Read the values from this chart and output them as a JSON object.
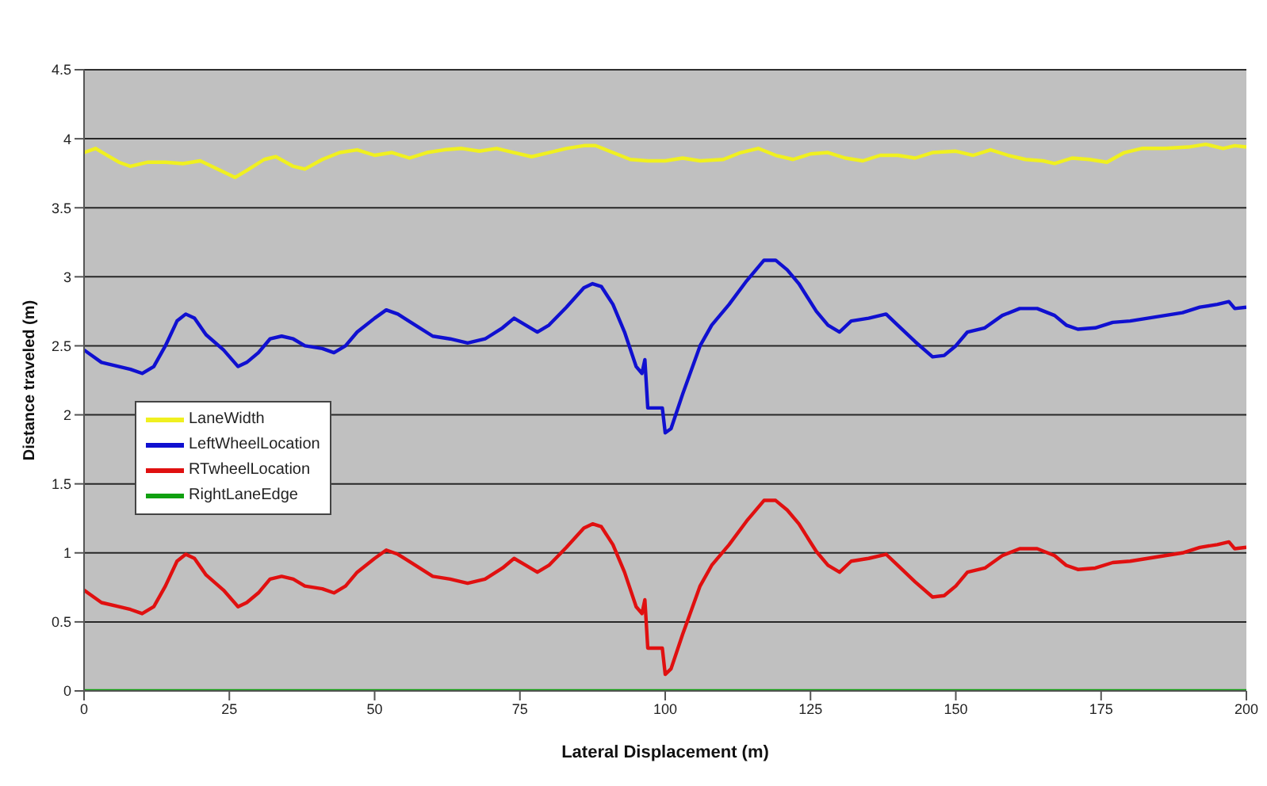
{
  "chart_data": {
    "type": "line",
    "xlabel": "Lateral Displacement (m)",
    "ylabel": "Distance traveled (m)",
    "xlim": [
      0,
      200
    ],
    "xticks": [
      0,
      25,
      50,
      75,
      100,
      125,
      150,
      175,
      200
    ],
    "ylim": [
      0,
      4.5
    ],
    "yticks": [
      0,
      0.5,
      1,
      1.5,
      2,
      2.5,
      3,
      3.5,
      4,
      4.5
    ],
    "grid": "y",
    "legend": "left",
    "marker": "none",
    "line_style": "solid",
    "series": [
      {
        "name": "LaneWidth",
        "color": "#f0f020",
        "x": [
          0,
          2,
          4,
          6,
          8,
          11,
          14,
          17,
          20,
          23,
          26,
          28,
          31,
          33,
          36,
          38,
          41,
          44,
          47,
          50,
          53,
          56,
          59,
          62,
          65,
          68,
          71,
          74,
          77,
          80,
          83,
          86,
          88,
          91,
          94,
          97,
          100,
          103,
          106,
          110,
          113,
          116,
          119,
          122,
          125,
          128,
          131,
          134,
          137,
          140,
          143,
          146,
          150,
          153,
          156,
          159,
          162,
          165,
          167,
          170,
          173,
          176,
          179,
          182,
          186,
          190,
          193,
          196,
          198,
          200
        ],
        "values": [
          3.9,
          3.93,
          3.88,
          3.83,
          3.8,
          3.83,
          3.83,
          3.82,
          3.84,
          3.78,
          3.72,
          3.77,
          3.85,
          3.87,
          3.8,
          3.78,
          3.85,
          3.9,
          3.92,
          3.88,
          3.9,
          3.86,
          3.9,
          3.92,
          3.93,
          3.91,
          3.93,
          3.9,
          3.87,
          3.9,
          3.93,
          3.95,
          3.95,
          3.9,
          3.85,
          3.84,
          3.84,
          3.86,
          3.84,
          3.85,
          3.9,
          3.93,
          3.88,
          3.85,
          3.89,
          3.9,
          3.86,
          3.84,
          3.88,
          3.88,
          3.86,
          3.9,
          3.91,
          3.88,
          3.92,
          3.88,
          3.85,
          3.84,
          3.82,
          3.86,
          3.85,
          3.83,
          3.9,
          3.93,
          3.93,
          3.94,
          3.96,
          3.93,
          3.95,
          3.94
        ]
      },
      {
        "name": "LeftWheelLocation",
        "color": "#1010d0",
        "x": [
          0,
          3,
          6,
          8,
          10,
          12,
          14,
          16,
          17.5,
          19,
          21,
          24,
          26.5,
          28,
          30,
          32,
          34,
          36,
          38,
          41,
          43,
          45,
          47,
          50,
          52,
          54,
          57,
          60,
          63,
          66,
          69,
          72,
          74,
          76,
          78,
          80,
          83,
          86,
          87.5,
          89,
          91,
          93,
          95,
          96,
          96.5,
          97,
          99.5,
          100,
          101,
          103,
          106,
          108,
          111,
          114,
          117,
          119,
          121,
          123,
          126,
          128,
          130,
          132,
          135,
          138,
          140,
          143,
          146,
          148,
          150,
          152,
          155,
          158,
          161,
          164,
          167,
          169,
          171,
          174,
          177,
          180,
          183,
          186,
          189,
          192,
          195,
          197,
          198,
          200
        ],
        "values": [
          2.47,
          2.38,
          2.35,
          2.33,
          2.3,
          2.35,
          2.5,
          2.68,
          2.73,
          2.7,
          2.58,
          2.47,
          2.35,
          2.38,
          2.45,
          2.55,
          2.57,
          2.55,
          2.5,
          2.48,
          2.45,
          2.5,
          2.6,
          2.7,
          2.76,
          2.73,
          2.65,
          2.57,
          2.55,
          2.52,
          2.55,
          2.63,
          2.7,
          2.65,
          2.6,
          2.65,
          2.78,
          2.92,
          2.95,
          2.93,
          2.8,
          2.6,
          2.35,
          2.3,
          2.4,
          2.05,
          2.05,
          1.87,
          1.9,
          2.15,
          2.5,
          2.65,
          2.8,
          2.97,
          3.12,
          3.12,
          3.05,
          2.95,
          2.75,
          2.65,
          2.6,
          2.68,
          2.7,
          2.73,
          2.65,
          2.53,
          2.42,
          2.43,
          2.5,
          2.6,
          2.63,
          2.72,
          2.77,
          2.77,
          2.72,
          2.65,
          2.62,
          2.63,
          2.67,
          2.68,
          2.7,
          2.72,
          2.74,
          2.78,
          2.8,
          2.82,
          2.77,
          2.78
        ]
      },
      {
        "name": "RTwheelLocation",
        "color": "#e01010",
        "x": [
          0,
          3,
          6,
          8,
          10,
          12,
          14,
          16,
          17.5,
          19,
          21,
          24,
          26.5,
          28,
          30,
          32,
          34,
          36,
          38,
          41,
          43,
          45,
          47,
          50,
          52,
          54,
          57,
          60,
          63,
          66,
          69,
          72,
          74,
          76,
          78,
          80,
          83,
          86,
          87.5,
          89,
          91,
          93,
          95,
          96,
          96.5,
          97,
          99.5,
          100,
          101,
          103,
          106,
          108,
          111,
          114,
          117,
          119,
          121,
          123,
          126,
          128,
          130,
          132,
          135,
          138,
          140,
          143,
          146,
          148,
          150,
          152,
          155,
          158,
          161,
          164,
          167,
          169,
          171,
          174,
          177,
          180,
          183,
          186,
          189,
          192,
          195,
          197,
          198,
          200
        ],
        "values": [
          0.73,
          0.64,
          0.61,
          0.59,
          0.56,
          0.61,
          0.76,
          0.94,
          0.99,
          0.96,
          0.84,
          0.73,
          0.61,
          0.64,
          0.71,
          0.81,
          0.83,
          0.81,
          0.76,
          0.74,
          0.71,
          0.76,
          0.86,
          0.96,
          1.02,
          0.99,
          0.91,
          0.83,
          0.81,
          0.78,
          0.81,
          0.89,
          0.96,
          0.91,
          0.86,
          0.91,
          1.04,
          1.18,
          1.21,
          1.19,
          1.06,
          0.86,
          0.61,
          0.56,
          0.66,
          0.31,
          0.31,
          0.12,
          0.16,
          0.41,
          0.76,
          0.91,
          1.06,
          1.23,
          1.38,
          1.38,
          1.31,
          1.21,
          1.01,
          0.91,
          0.86,
          0.94,
          0.96,
          0.99,
          0.91,
          0.79,
          0.68,
          0.69,
          0.76,
          0.86,
          0.89,
          0.98,
          1.03,
          1.03,
          0.98,
          0.91,
          0.88,
          0.89,
          0.93,
          0.94,
          0.96,
          0.98,
          1,
          1.04,
          1.06,
          1.08,
          1.03,
          1.04
        ]
      },
      {
        "name": "RightLaneEdge",
        "color": "#10a010",
        "x": [
          0,
          200
        ],
        "values": [
          0,
          0
        ]
      }
    ]
  }
}
